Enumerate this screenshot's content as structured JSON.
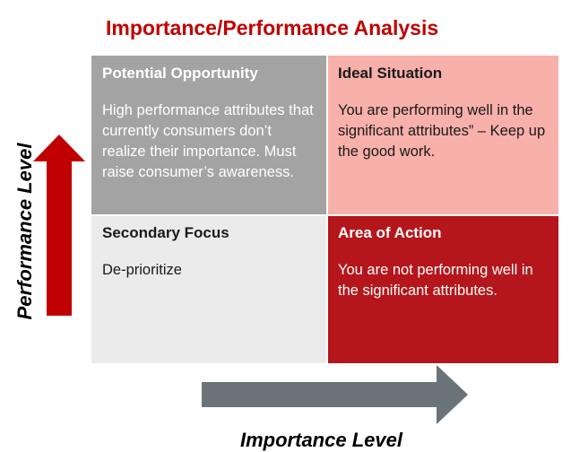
{
  "title": "Importance/Performance Analysis",
  "quadrants": {
    "top_left": {
      "title": "Potential Opportunity",
      "body": "High performance attributes that  currently consumers don’t realize their importance. Must raise consumer’s awareness."
    },
    "top_right": {
      "title": "Ideal Situation",
      "body": "You are performing well in the significant attributes” – Keep up the good work."
    },
    "bottom_left": {
      "title": "Secondary Focus",
      "body": "De-prioritize"
    },
    "bottom_right": {
      "title": "Area of Action",
      "body": "You are not performing well in the significant attributes."
    }
  },
  "axes": {
    "y_label": "Performance Level",
    "x_label": "Importance Level"
  },
  "colors": {
    "title": "#c00000",
    "top_left": "#a3a3a3",
    "top_right": "#f7b0aa",
    "bottom_left": "#ebebeb",
    "bottom_right": "#b4161b",
    "y_arrow": "#c00000",
    "x_arrow": "#6a7378"
  }
}
